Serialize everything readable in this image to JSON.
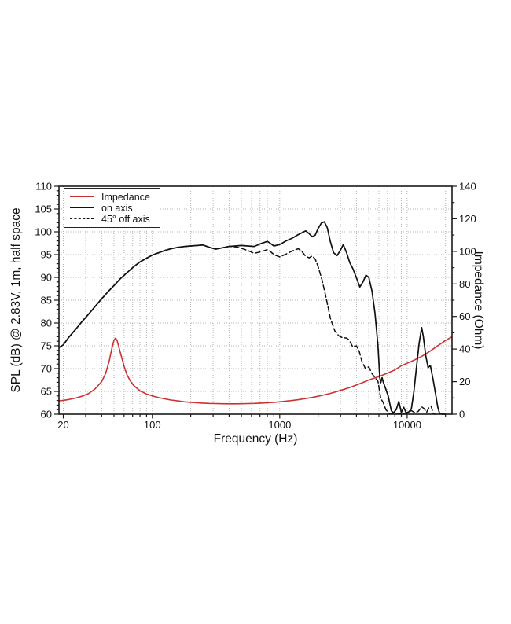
{
  "figure": {
    "background": "#ffffff",
    "colors": {
      "impedance_line": "#cc3232",
      "curve_line": "#111111",
      "grid_line": "#b3b3b3",
      "axis_line": "#1a1a1a"
    }
  },
  "legend": {
    "items": [
      {
        "label": "Impedance",
        "style": "solid",
        "color": "#cc3232"
      },
      {
        "label": "on axis",
        "style": "solid",
        "color": "#111111"
      },
      {
        "label": "45° off axis",
        "style": "dashed",
        "color": "#111111"
      }
    ]
  },
  "chart_data": {
    "type": "line",
    "x_axis": {
      "label": "Frequency (Hz)",
      "scale": "log",
      "range_hz": [
        18.5,
        22500
      ],
      "ticks": [
        20,
        100,
        1000,
        10000
      ],
      "tick_labels": [
        "20",
        "100",
        "1000",
        "10000"
      ],
      "minor_gridlines": "log decades 20-20000",
      "grid": true
    },
    "y_left": {
      "label": "SPL (dB) @ 2.83V, 1m, half space",
      "min": 60,
      "max": 110,
      "tick_step": 5,
      "minor_tick_step": 1,
      "grid": true
    },
    "y_right": {
      "label": "Impedance (Ohm)",
      "min": 0,
      "max": 140,
      "tick_step": 20,
      "minor_tick_step": 10
    },
    "legend_position": "upper-left",
    "series": [
      {
        "name": "Impedance",
        "axis": "right",
        "color": "#cc3232",
        "style": "solid",
        "width": 1.6,
        "unit": "Ohm",
        "points": [
          [
            18.5,
            8.2
          ],
          [
            20,
            8.5
          ],
          [
            22,
            9.0
          ],
          [
            25,
            9.9
          ],
          [
            28,
            11.0
          ],
          [
            31.5,
            12.6
          ],
          [
            35.5,
            15.5
          ],
          [
            40,
            20.0
          ],
          [
            43,
            25.0
          ],
          [
            46,
            33.0
          ],
          [
            48,
            40.0
          ],
          [
            50,
            45.5
          ],
          [
            51.5,
            46.8
          ],
          [
            53,
            45.0
          ],
          [
            56,
            38.0
          ],
          [
            60,
            29.5
          ],
          [
            63,
            24.5
          ],
          [
            67,
            20.5
          ],
          [
            71,
            17.8
          ],
          [
            80,
            14.3
          ],
          [
            90,
            12.4
          ],
          [
            100,
            11.2
          ],
          [
            112,
            10.2
          ],
          [
            125,
            9.4
          ],
          [
            140,
            8.7
          ],
          [
            160,
            8.1
          ],
          [
            180,
            7.6
          ],
          [
            200,
            7.3
          ],
          [
            225,
            7.0
          ],
          [
            250,
            6.8
          ],
          [
            280,
            6.6
          ],
          [
            315,
            6.5
          ],
          [
            355,
            6.4
          ],
          [
            400,
            6.35
          ],
          [
            450,
            6.35
          ],
          [
            500,
            6.4
          ],
          [
            560,
            6.5
          ],
          [
            630,
            6.6
          ],
          [
            710,
            6.8
          ],
          [
            800,
            7.0
          ],
          [
            900,
            7.3
          ],
          [
            1000,
            7.6
          ],
          [
            1120,
            8.0
          ],
          [
            1250,
            8.4
          ],
          [
            1400,
            8.9
          ],
          [
            1600,
            9.6
          ],
          [
            1800,
            10.3
          ],
          [
            2000,
            11.0
          ],
          [
            2240,
            11.9
          ],
          [
            2500,
            12.8
          ],
          [
            2800,
            13.9
          ],
          [
            3150,
            15.1
          ],
          [
            3550,
            16.4
          ],
          [
            4000,
            17.9
          ],
          [
            4500,
            19.5
          ],
          [
            5000,
            21.0
          ],
          [
            5600,
            22.3
          ],
          [
            6300,
            23.8
          ],
          [
            7100,
            25.4
          ],
          [
            8000,
            27.2
          ],
          [
            9000,
            29.8
          ],
          [
            10000,
            31.3
          ],
          [
            11200,
            33.0
          ],
          [
            12500,
            34.8
          ],
          [
            14000,
            37.0
          ],
          [
            16000,
            40.0
          ],
          [
            18000,
            42.8
          ],
          [
            20000,
            45.3
          ],
          [
            22500,
            47.5
          ]
        ]
      },
      {
        "name": "on axis",
        "axis": "left",
        "color": "#111111",
        "style": "solid",
        "width": 1.7,
        "unit": "dB",
        "points": [
          [
            18.5,
            74.6
          ],
          [
            20,
            75.2
          ],
          [
            22,
            76.8
          ],
          [
            25,
            78.6
          ],
          [
            28,
            80.3
          ],
          [
            31.5,
            81.9
          ],
          [
            35.5,
            83.6
          ],
          [
            40,
            85.3
          ],
          [
            45,
            86.9
          ],
          [
            50,
            88.2
          ],
          [
            56,
            89.7
          ],
          [
            63,
            91.0
          ],
          [
            71,
            92.3
          ],
          [
            80,
            93.4
          ],
          [
            90,
            94.2
          ],
          [
            100,
            94.9
          ],
          [
            112,
            95.4
          ],
          [
            125,
            95.9
          ],
          [
            140,
            96.3
          ],
          [
            160,
            96.6
          ],
          [
            180,
            96.8
          ],
          [
            200,
            96.9
          ],
          [
            225,
            97.0
          ],
          [
            250,
            97.1
          ],
          [
            280,
            96.6
          ],
          [
            315,
            96.2
          ],
          [
            355,
            96.5
          ],
          [
            400,
            96.8
          ],
          [
            450,
            96.9
          ],
          [
            500,
            97.0
          ],
          [
            560,
            96.9
          ],
          [
            630,
            96.8
          ],
          [
            710,
            97.4
          ],
          [
            800,
            97.9
          ],
          [
            850,
            97.4
          ],
          [
            900,
            96.9
          ],
          [
            1000,
            97.2
          ],
          [
            1120,
            98.0
          ],
          [
            1250,
            98.6
          ],
          [
            1400,
            99.4
          ],
          [
            1600,
            100.2
          ],
          [
            1700,
            99.6
          ],
          [
            1800,
            98.9
          ],
          [
            1900,
            99.3
          ],
          [
            2000,
            100.7
          ],
          [
            2120,
            101.9
          ],
          [
            2240,
            102.2
          ],
          [
            2360,
            100.9
          ],
          [
            2500,
            97.8
          ],
          [
            2650,
            95.4
          ],
          [
            2820,
            94.8
          ],
          [
            3000,
            96.0
          ],
          [
            3150,
            97.2
          ],
          [
            3350,
            95.4
          ],
          [
            3550,
            93.2
          ],
          [
            3750,
            91.9
          ],
          [
            4000,
            89.9
          ],
          [
            4250,
            87.9
          ],
          [
            4500,
            89.0
          ],
          [
            4750,
            90.5
          ],
          [
            5000,
            90.0
          ],
          [
            5300,
            87.0
          ],
          [
            5600,
            82.0
          ],
          [
            5900,
            75.0
          ],
          [
            6100,
            68.0
          ],
          [
            6200,
            66.9
          ],
          [
            6350,
            68.0
          ],
          [
            6500,
            67.0
          ],
          [
            6700,
            66.0
          ],
          [
            7100,
            64.0
          ],
          [
            7500,
            60.8
          ],
          [
            7800,
            60.3
          ],
          [
            8200,
            61.0
          ],
          [
            8600,
            62.8
          ],
          [
            9000,
            60.4
          ],
          [
            9400,
            61.5
          ],
          [
            9800,
            60.3
          ],
          [
            10300,
            60.5
          ],
          [
            10800,
            61.2
          ],
          [
            11300,
            65.0
          ],
          [
            11800,
            70.0
          ],
          [
            12400,
            75.5
          ],
          [
            13000,
            79.0
          ],
          [
            13400,
            77.0
          ],
          [
            14000,
            72.8
          ],
          [
            14600,
            70.2
          ],
          [
            15200,
            70.7
          ],
          [
            16000,
            67.5
          ],
          [
            16700,
            64.5
          ],
          [
            17400,
            61.5
          ],
          [
            18000,
            60.1
          ],
          [
            19000,
            60.0
          ],
          [
            20000,
            60.0
          ]
        ]
      },
      {
        "name": "45° off axis",
        "axis": "left",
        "color": "#111111",
        "style": "dashed",
        "width": 1.5,
        "unit": "dB",
        "points": [
          [
            18.5,
            74.6
          ],
          [
            20,
            75.2
          ],
          [
            22,
            76.8
          ],
          [
            25,
            78.6
          ],
          [
            28,
            80.3
          ],
          [
            31.5,
            81.9
          ],
          [
            35.5,
            83.6
          ],
          [
            40,
            85.3
          ],
          [
            45,
            86.9
          ],
          [
            50,
            88.2
          ],
          [
            56,
            89.7
          ],
          [
            63,
            91.0
          ],
          [
            71,
            92.3
          ],
          [
            80,
            93.4
          ],
          [
            90,
            94.2
          ],
          [
            100,
            94.9
          ],
          [
            112,
            95.4
          ],
          [
            125,
            95.9
          ],
          [
            140,
            96.3
          ],
          [
            160,
            96.6
          ],
          [
            180,
            96.8
          ],
          [
            200,
            96.9
          ],
          [
            225,
            97.0
          ],
          [
            250,
            97.1
          ],
          [
            280,
            96.6
          ],
          [
            315,
            96.2
          ],
          [
            355,
            96.5
          ],
          [
            400,
            96.8
          ],
          [
            450,
            96.7
          ],
          [
            500,
            96.4
          ],
          [
            560,
            95.9
          ],
          [
            630,
            95.3
          ],
          [
            710,
            95.6
          ],
          [
            800,
            96.1
          ],
          [
            850,
            95.6
          ],
          [
            900,
            95.0
          ],
          [
            1000,
            94.5
          ],
          [
            1120,
            95.1
          ],
          [
            1250,
            95.8
          ],
          [
            1400,
            96.3
          ],
          [
            1500,
            95.6
          ],
          [
            1600,
            94.6
          ],
          [
            1700,
            94.3
          ],
          [
            1800,
            94.7
          ],
          [
            1900,
            94.0
          ],
          [
            2000,
            92.4
          ],
          [
            2150,
            89.4
          ],
          [
            2300,
            85.8
          ],
          [
            2500,
            81.0
          ],
          [
            2700,
            78.3
          ],
          [
            2900,
            77.2
          ],
          [
            3100,
            76.8
          ],
          [
            3350,
            76.7
          ],
          [
            3500,
            76.3
          ],
          [
            3750,
            74.7
          ],
          [
            4000,
            75.0
          ],
          [
            4200,
            73.8
          ],
          [
            4400,
            71.7
          ],
          [
            4700,
            70.0
          ],
          [
            5000,
            70.4
          ],
          [
            5300,
            68.9
          ],
          [
            5600,
            68.0
          ],
          [
            5900,
            67.2
          ],
          [
            6200,
            63.5
          ],
          [
            6500,
            62.5
          ],
          [
            6800,
            61.0
          ],
          [
            7200,
            60.2
          ],
          [
            8000,
            60.0
          ],
          [
            9000,
            60.1
          ],
          [
            10000,
            60.2
          ],
          [
            10800,
            60.8
          ],
          [
            11500,
            60.3
          ],
          [
            12200,
            60.6
          ],
          [
            13000,
            61.6
          ],
          [
            13600,
            61.2
          ],
          [
            14200,
            60.4
          ],
          [
            14800,
            61.4
          ],
          [
            15400,
            61.8
          ],
          [
            16000,
            60.2
          ],
          [
            16500,
            60.0
          ]
        ]
      }
    ]
  }
}
